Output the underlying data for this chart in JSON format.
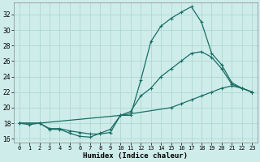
{
  "xlabel": "Humidex (Indice chaleur)",
  "background_color": "#ceecea",
  "grid_color": "#aed8d4",
  "line_color": "#1a6e64",
  "xlim": [
    -0.5,
    23.5
  ],
  "ylim": [
    15.5,
    33.5
  ],
  "yticks": [
    16,
    18,
    20,
    22,
    24,
    26,
    28,
    30,
    32
  ],
  "xticks": [
    0,
    1,
    2,
    3,
    4,
    5,
    6,
    7,
    8,
    9,
    10,
    11,
    12,
    13,
    14,
    15,
    16,
    17,
    18,
    19,
    20,
    21,
    22,
    23
  ],
  "line1_x": [
    0,
    1,
    2,
    3,
    4,
    5,
    6,
    7,
    8,
    9,
    10,
    11,
    12,
    13,
    14,
    15,
    16,
    17,
    18,
    19,
    20,
    21,
    22,
    23
  ],
  "line1_y": [
    18,
    17.8,
    18,
    17.2,
    17.2,
    16.7,
    16.3,
    16.2,
    16.7,
    17.2,
    19.0,
    19.0,
    23.5,
    28.5,
    30.5,
    31.5,
    32.3,
    33.0,
    31.0,
    27.0,
    25.5,
    23.2,
    22.5,
    22.0
  ],
  "line2_x": [
    0,
    2,
    3,
    4,
    5,
    6,
    7,
    8,
    9,
    10,
    11,
    12,
    13,
    14,
    15,
    16,
    17,
    18,
    19,
    20,
    21,
    22,
    23
  ],
  "line2_y": [
    18,
    18,
    17.3,
    17.3,
    17.0,
    16.8,
    16.6,
    16.6,
    16.8,
    19.0,
    19.5,
    21.5,
    22.5,
    24.0,
    25.0,
    26.0,
    27.0,
    27.2,
    26.5,
    25.0,
    23.0,
    22.5,
    22.0
  ],
  "line3_x": [
    0,
    2,
    10,
    15,
    16,
    17,
    18,
    19,
    20,
    21,
    22,
    23
  ],
  "line3_y": [
    18,
    18,
    19,
    20.0,
    20.5,
    21.0,
    21.5,
    22.0,
    22.5,
    22.8,
    22.5,
    22.0
  ]
}
